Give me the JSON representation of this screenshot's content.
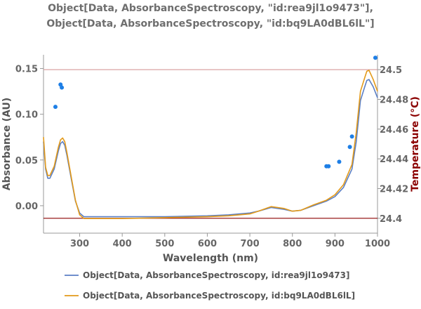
{
  "title_lines": [
    "Object[Data, AbsorbanceSpectroscopy, \"id:rea9jl1o9473\"],",
    "Object[Data, AbsorbanceSpectroscopy, \"id:bq9LA0dBL6lL\"]"
  ],
  "chart_data": {
    "type": "line",
    "xlabel": "Wavelength  (nm)",
    "ylabel": "Absorbance  (AU)",
    "ylabel_right": "Temperature  (°C)",
    "xlim": [
      215,
      1000
    ],
    "ylim": [
      -0.03,
      0.165
    ],
    "y2lim": [
      24.39,
      24.51
    ],
    "x_ticks": [
      300,
      400,
      500,
      600,
      700,
      800,
      900,
      1000
    ],
    "y_ticks": [
      0.0,
      0.05,
      0.1,
      0.15
    ],
    "y_tick_labels": [
      "0.00",
      "0.05",
      "0.10",
      "0.15"
    ],
    "y2_ticks": [
      24.4,
      24.42,
      24.44,
      24.46,
      24.48,
      24.5
    ],
    "y2_tick_labels": [
      "24.4",
      "24.42",
      "24.44",
      "24.46",
      "24.48",
      "24.5"
    ],
    "legend_placement": "bottom",
    "series": [
      {
        "name": "Object[Data, AbsorbanceSpectroscopy, id:rea9jl1o9473]",
        "color": "#5b7fc4",
        "x": [
          215,
          220,
          225,
          230,
          240,
          250,
          255,
          260,
          265,
          270,
          280,
          290,
          300,
          310,
          350,
          400,
          500,
          600,
          650,
          700,
          720,
          750,
          780,
          800,
          820,
          850,
          880,
          900,
          920,
          940,
          950,
          960,
          970,
          975,
          980,
          990,
          1000
        ],
        "y": [
          0.07,
          0.04,
          0.03,
          0.03,
          0.04,
          0.06,
          0.068,
          0.07,
          0.066,
          0.055,
          0.03,
          0.005,
          -0.008,
          -0.012,
          -0.012,
          -0.012,
          -0.012,
          -0.011,
          -0.01,
          -0.008,
          -0.006,
          -0.002,
          -0.004,
          -0.006,
          -0.005,
          0.0,
          0.005,
          0.01,
          0.02,
          0.04,
          0.07,
          0.115,
          0.13,
          0.137,
          0.138,
          0.13,
          0.118
        ]
      },
      {
        "name": "Object[Data, AbsorbanceSpectroscopy, id:bq9LA0dBL6lL]",
        "color": "#e39a1a",
        "x": [
          215,
          220,
          225,
          230,
          240,
          250,
          255,
          260,
          265,
          270,
          280,
          290,
          300,
          310,
          350,
          400,
          500,
          600,
          650,
          700,
          720,
          750,
          780,
          800,
          820,
          850,
          880,
          900,
          920,
          940,
          950,
          960,
          970,
          975,
          980,
          990,
          1000
        ],
        "y": [
          0.075,
          0.042,
          0.033,
          0.033,
          0.043,
          0.064,
          0.072,
          0.074,
          0.07,
          0.058,
          0.032,
          0.006,
          -0.01,
          -0.014,
          -0.014,
          -0.014,
          -0.013,
          -0.012,
          -0.011,
          -0.009,
          -0.006,
          -0.001,
          -0.003,
          -0.006,
          -0.005,
          0.001,
          0.006,
          0.012,
          0.023,
          0.045,
          0.08,
          0.125,
          0.14,
          0.147,
          0.148,
          0.138,
          0.125
        ]
      }
    ],
    "temperature_points": {
      "color": "#1e7fe6",
      "x": [
        243,
        255,
        258,
        880,
        885,
        910,
        935,
        940,
        995
      ],
      "y": [
        24.475,
        24.49,
        24.488,
        24.435,
        24.435,
        24.438,
        24.448,
        24.455,
        24.508
      ]
    },
    "reference_lines": [
      {
        "axis": "y2",
        "value": 24.5,
        "color": "#d69a9a"
      },
      {
        "axis": "y2",
        "value": 24.4,
        "color": "#8b0000"
      }
    ]
  }
}
